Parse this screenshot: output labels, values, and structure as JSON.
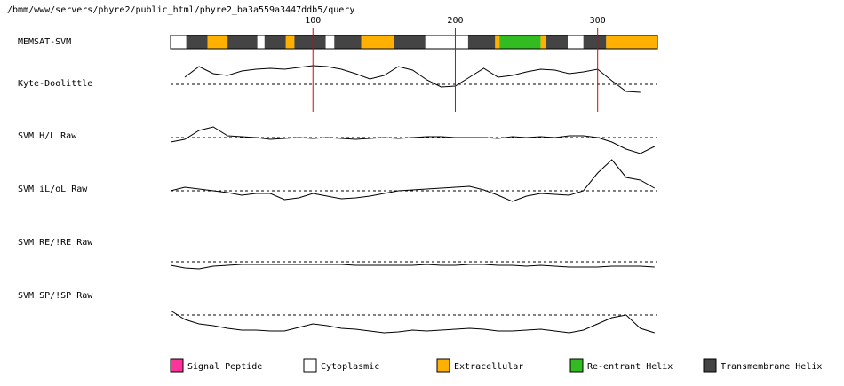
{
  "header": {
    "path": "/bmm/www/servers/phyre2/public_html/phyre2_ba3a559a3447ddb5/query"
  },
  "xlim": [
    0,
    342
  ],
  "xticks": [
    100,
    200,
    300
  ],
  "x": [
    0,
    10,
    20,
    30,
    40,
    50,
    60,
    70,
    80,
    90,
    100,
    110,
    120,
    130,
    140,
    150,
    160,
    170,
    180,
    190,
    200,
    210,
    220,
    230,
    240,
    250,
    260,
    270,
    280,
    290,
    300,
    310,
    320,
    330,
    340
  ],
  "memsat": {
    "label": "MEMSAT-SVM",
    "segments": [
      {
        "type": "Cytoplasmic",
        "start": 0,
        "end": 11
      },
      {
        "type": "Transmembrane Helix",
        "start": 11,
        "end": 26
      },
      {
        "type": "Extracellular",
        "start": 26,
        "end": 40
      },
      {
        "type": "Transmembrane Helix",
        "start": 40,
        "end": 61
      },
      {
        "type": "Cytoplasmic",
        "start": 61,
        "end": 66
      },
      {
        "type": "Transmembrane Helix",
        "start": 66,
        "end": 81
      },
      {
        "type": "Extracellular",
        "start": 81,
        "end": 87
      },
      {
        "type": "Transmembrane Helix",
        "start": 87,
        "end": 109
      },
      {
        "type": "Cytoplasmic",
        "start": 109,
        "end": 115
      },
      {
        "type": "Transmembrane Helix",
        "start": 115,
        "end": 134
      },
      {
        "type": "Extracellular",
        "start": 134,
        "end": 157
      },
      {
        "type": "Transmembrane Helix",
        "start": 157,
        "end": 179
      },
      {
        "type": "Cytoplasmic",
        "start": 179,
        "end": 209
      },
      {
        "type": "Transmembrane Helix",
        "start": 209,
        "end": 228
      },
      {
        "type": "Extracellular",
        "start": 228,
        "end": 231
      },
      {
        "type": "Re-entrant Helix",
        "start": 231,
        "end": 260
      },
      {
        "type": "Extracellular",
        "start": 260,
        "end": 264
      },
      {
        "type": "Transmembrane Helix",
        "start": 264,
        "end": 279
      },
      {
        "type": "Cytoplasmic",
        "start": 279,
        "end": 290
      },
      {
        "type": "Transmembrane Helix",
        "start": 290,
        "end": 306
      },
      {
        "type": "Extracellular",
        "start": 306,
        "end": 342
      }
    ]
  },
  "traces": [
    {
      "label": "Kyte-Doolittle",
      "values": [
        null,
        8,
        20,
        12,
        10,
        15,
        17,
        18,
        17,
        19,
        21,
        20,
        17,
        12,
        6,
        10,
        20,
        16,
        5,
        -3,
        -2,
        8,
        18,
        8,
        10,
        14,
        17,
        16,
        12,
        14,
        17,
        4,
        -8,
        -9,
        null
      ]
    },
    {
      "label": "SVM H/L Raw",
      "values": [
        -5,
        -2,
        8,
        12,
        2,
        1,
        0,
        -2,
        -1,
        0,
        -1,
        0,
        -1,
        -2,
        -1,
        0,
        -1,
        0,
        1,
        1,
        0,
        0,
        0,
        -1,
        1,
        0,
        1,
        0,
        2,
        2,
        0,
        -5,
        -13,
        -18,
        -10
      ]
    },
    {
      "label": "SVM iL/oL Raw",
      "values": [
        0,
        4,
        2,
        0,
        -2,
        -5,
        -3,
        -3,
        -10,
        -8,
        -3,
        -6,
        -9,
        -8,
        -6,
        -3,
        0,
        1,
        2,
        3,
        4,
        5,
        1,
        -5,
        -12,
        -6,
        -3,
        -4,
        -5,
        0,
        20,
        35,
        15,
        12,
        3
      ]
    },
    {
      "label": "SVM RE/!RE Raw",
      "values": [
        -4,
        -7,
        -8,
        -5,
        -4,
        -3,
        -3,
        -3,
        -3,
        -3,
        -3,
        -3,
        -3,
        -4,
        -4,
        -4,
        -4,
        -4,
        -3,
        -4,
        -4,
        -3,
        -3,
        -4,
        -4,
        -5,
        -4,
        -5,
        -6,
        -6,
        -6,
        -5,
        -5,
        -5,
        -6
      ]
    },
    {
      "label": "SVM SP/!SP Raw",
      "values": [
        5,
        -5,
        -10,
        -12,
        -15,
        -17,
        -17,
        -18,
        -18,
        -14,
        -10,
        -12,
        -15,
        -16,
        -18,
        -20,
        -19,
        -17,
        -18,
        -17,
        -16,
        -15,
        -16,
        -18,
        -18,
        -17,
        -16,
        -18,
        -20,
        -17,
        -10,
        -3,
        0,
        -15,
        -20
      ]
    }
  ],
  "legend": [
    {
      "name": "Signal Peptide",
      "color": "#ff3399"
    },
    {
      "name": "Cytoplasmic",
      "color": "#ffffff"
    },
    {
      "name": "Extracellular",
      "color": "#ffb000"
    },
    {
      "name": "Re-entrant Helix",
      "color": "#33bb22"
    },
    {
      "name": "Transmembrane Helix",
      "color": "#444444"
    }
  ]
}
